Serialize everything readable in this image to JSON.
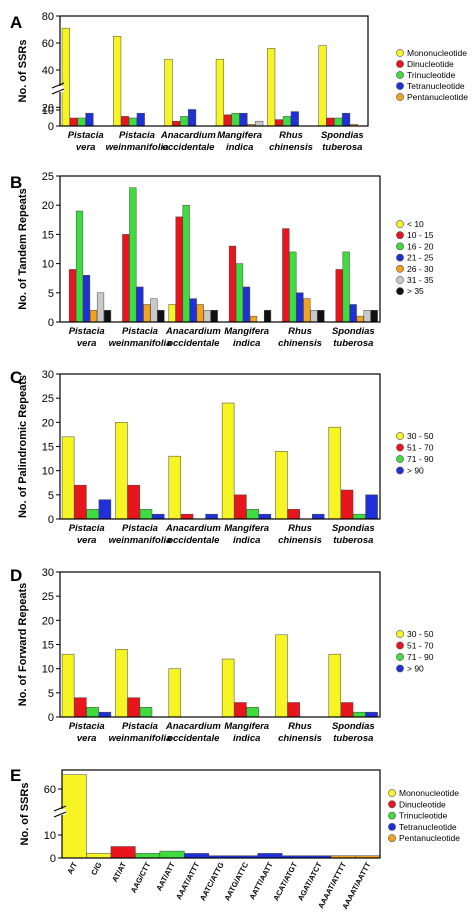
{
  "colors": {
    "yellow": "#f7f423",
    "red": "#e8151c",
    "green": "#3fdc3f",
    "blue": "#2030d8",
    "orange": "#f2a21c",
    "lightgray": "#c9c9c9",
    "black": "#111111"
  },
  "chart_data": [
    {
      "panel": "A",
      "type": "bar",
      "ylabel": "No. of SSRs",
      "ylim": [
        0,
        80
      ],
      "y_axis_break": true,
      "yticks": [
        "0",
        "10",
        "20",
        "40",
        "60",
        "80"
      ],
      "categories": [
        [
          "Pistacia",
          "vera"
        ],
        [
          "Pistacia",
          "weinmanifolia"
        ],
        [
          "Anacardium",
          "occidentale"
        ],
        [
          "Mangifera",
          "indica"
        ],
        [
          "Rhus",
          "chinensis"
        ],
        [
          "Spondias",
          "tuberosa"
        ]
      ],
      "series": [
        {
          "name": "Mononucleotide",
          "color": "#f7f423",
          "values": [
            71,
            65,
            48,
            48,
            56,
            58
          ]
        },
        {
          "name": "Dinucleotide",
          "color": "#e8151c",
          "values": [
            5,
            6,
            3,
            7,
            4,
            5
          ]
        },
        {
          "name": "Trinucleotide",
          "color": "#3fdc3f",
          "values": [
            5,
            5,
            6,
            8,
            6,
            5
          ]
        },
        {
          "name": "Tetranucleotide",
          "color": "#2030d8",
          "values": [
            8,
            8,
            12,
            8,
            9,
            8
          ]
        },
        {
          "name": "Pentanucleotide",
          "color": "#f2a21c",
          "values": [
            0,
            0,
            0,
            1,
            0,
            1
          ]
        },
        {
          "name": "",
          "color": "#c9c9c9",
          "values": [
            0,
            0,
            0,
            3,
            0,
            0
          ]
        }
      ],
      "legend_position": "right"
    },
    {
      "panel": "B",
      "type": "bar",
      "ylabel": "No. of Tandem Repeats",
      "ylim": [
        0,
        25
      ],
      "yticks": [
        "0",
        "5",
        "10",
        "15",
        "20",
        "25"
      ],
      "categories": [
        [
          "Pistacia",
          "vera"
        ],
        [
          "Pistacia",
          "weinmanifolia"
        ],
        [
          "Anacardium",
          "occidentale"
        ],
        [
          "Mangifera",
          "indica"
        ],
        [
          "Rhus",
          "chinensis"
        ],
        [
          "Spondias",
          "tuberosa"
        ]
      ],
      "series": [
        {
          "name": "< 10",
          "color": "#f7f423",
          "values": [
            0,
            0,
            3,
            0,
            0,
            0
          ]
        },
        {
          "name": "10 - 15",
          "color": "#e8151c",
          "values": [
            9,
            15,
            18,
            13,
            16,
            9
          ]
        },
        {
          "name": "16 - 20",
          "color": "#3fdc3f",
          "values": [
            19,
            23,
            20,
            10,
            12,
            12
          ]
        },
        {
          "name": "21 - 25",
          "color": "#2030d8",
          "values": [
            8,
            6,
            4,
            6,
            5,
            3
          ]
        },
        {
          "name": "26 - 30",
          "color": "#f2a21c",
          "values": [
            2,
            3,
            3,
            1,
            4,
            1
          ]
        },
        {
          "name": "31 - 35",
          "color": "#c9c9c9",
          "values": [
            5,
            4,
            2,
            0,
            2,
            2
          ]
        },
        {
          "name": "> 35",
          "color": "#111111",
          "values": [
            2,
            2,
            2,
            2,
            2,
            2
          ]
        }
      ],
      "legend_position": "right"
    },
    {
      "panel": "C",
      "type": "bar",
      "ylabel": "No. of Palindromic Repeats",
      "ylim": [
        0,
        30
      ],
      "yticks": [
        "0",
        "5",
        "10",
        "15",
        "20",
        "25",
        "30"
      ],
      "categories": [
        [
          "Pistacia",
          "vera"
        ],
        [
          "Pistacia",
          "weinmanifolia"
        ],
        [
          "Anacardium",
          "occidentale"
        ],
        [
          "Mangifera",
          "indica"
        ],
        [
          "Rhus",
          "chinensis"
        ],
        [
          "Spondias",
          "tuberosa"
        ]
      ],
      "series": [
        {
          "name": "30 - 50",
          "color": "#f7f423",
          "values": [
            17,
            20,
            13,
            24,
            14,
            19
          ]
        },
        {
          "name": "51 - 70",
          "color": "#e8151c",
          "values": [
            7,
            7,
            1,
            5,
            2,
            6
          ]
        },
        {
          "name": "71 - 90",
          "color": "#3fdc3f",
          "values": [
            2,
            2,
            0,
            2,
            0,
            1
          ]
        },
        {
          "name": "> 90",
          "color": "#2030d8",
          "values": [
            4,
            1,
            1,
            1,
            1,
            5
          ]
        }
      ],
      "legend_position": "right"
    },
    {
      "panel": "D",
      "type": "bar",
      "ylabel": "No. of Forward Repeats",
      "ylim": [
        0,
        30
      ],
      "yticks": [
        "0",
        "5",
        "10",
        "15",
        "20",
        "25",
        "30"
      ],
      "categories": [
        [
          "Pistacia",
          "vera"
        ],
        [
          "Pistacia",
          "weinmanifolia"
        ],
        [
          "Anacardium",
          "occidentale"
        ],
        [
          "Mangifera",
          "indica"
        ],
        [
          "Rhus",
          "chinensis"
        ],
        [
          "Spondias",
          "tuberosa"
        ]
      ],
      "series": [
        {
          "name": "30 - 50",
          "color": "#f7f423",
          "values": [
            13,
            14,
            10,
            12,
            17,
            13
          ]
        },
        {
          "name": "51 - 70",
          "color": "#e8151c",
          "values": [
            4,
            4,
            0,
            3,
            3,
            3
          ]
        },
        {
          "name": "71 - 90",
          "color": "#3fdc3f",
          "values": [
            2,
            2,
            0,
            2,
            0,
            1
          ]
        },
        {
          "name": "> 90",
          "color": "#2030d8",
          "values": [
            1,
            0,
            0,
            0,
            0,
            1
          ]
        }
      ],
      "legend_position": "right"
    },
    {
      "panel": "E",
      "type": "bar",
      "ylabel": "No. of SSRs",
      "y_axis_break": true,
      "yticks": [
        "0",
        "10",
        "60"
      ],
      "categories": [
        "A/T",
        "C/G",
        "AT/AT",
        "AAG/CTT",
        "AAT/ATT",
        "AAAT/ATTT",
        "AATC/ATTG",
        "AATG/ATTC",
        "AATT/AATT",
        "ACAT/ATGT",
        "AGAT/ATCT",
        "AAAAT/ATTTT",
        "AAAAT/AATTT"
      ],
      "values": [
        69,
        2,
        5,
        2,
        3,
        2,
        1,
        1,
        2,
        1,
        1,
        1,
        1
      ],
      "bar_colors": [
        "#f7f423",
        "#f7f423",
        "#e8151c",
        "#3fdc3f",
        "#3fdc3f",
        "#2030d8",
        "#2030d8",
        "#2030d8",
        "#2030d8",
        "#2030d8",
        "#2030d8",
        "#f2a21c",
        "#f2a21c"
      ],
      "legend": [
        {
          "name": "Mononucleotide",
          "color": "#f7f423"
        },
        {
          "name": "Dinucleotide",
          "color": "#e8151c"
        },
        {
          "name": "Trinucleotide",
          "color": "#3fdc3f"
        },
        {
          "name": "Tetranucleotide",
          "color": "#2030d8"
        },
        {
          "name": "Pentanucleotide",
          "color": "#f2a21c"
        }
      ],
      "legend_position": "right"
    }
  ]
}
